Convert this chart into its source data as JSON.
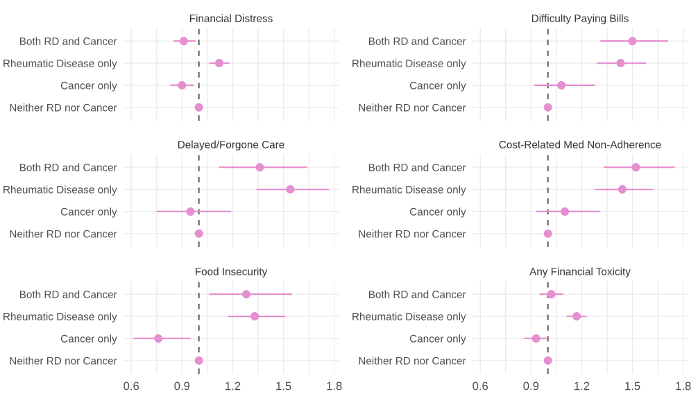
{
  "chart_data": [
    {
      "type": "scatter",
      "orientation": "horizontal",
      "title": "Financial Distress",
      "categories": [
        "Both RD and Cancer",
        "Rheumatic Disease only",
        "Cancer only",
        "Neither RD nor Cancer"
      ],
      "values": [
        0.91,
        1.12,
        0.9,
        1.0
      ],
      "errors": [
        [
          0.85,
          0.98
        ],
        [
          1.06,
          1.18
        ],
        [
          0.83,
          0.97
        ],
        null
      ],
      "color": "#e58fd0",
      "marker": "circle",
      "xlim": [
        0.55,
        1.83
      ],
      "xticks": [
        0.6,
        {
          "value": 0.75,
          "label": null
        },
        0.9,
        {
          "value": 1.05,
          "label": null
        },
        1.2,
        {
          "value": 1.35,
          "label": null
        },
        1.5,
        {
          "value": 1.65,
          "label": null
        },
        1.8
      ],
      "ref_lines": [
        {
          "axis": "x",
          "value": 1,
          "color": "#555555",
          "line_style": "dashed"
        }
      ],
      "grid": true,
      "tick_labels": "y"
    },
    {
      "type": "scatter",
      "orientation": "horizontal",
      "title": "Difficulty Paying Bills",
      "categories": [
        "Both RD and Cancer",
        "Rheumatic Disease only",
        "Cancer only",
        "Neither RD nor Cancer"
      ],
      "values": [
        1.5,
        1.43,
        1.08,
        1.0
      ],
      "errors": [
        [
          1.31,
          1.71
        ],
        [
          1.29,
          1.58
        ],
        [
          0.92,
          1.28
        ],
        null
      ],
      "color": "#e58fd0",
      "marker": "circle",
      "xlim": [
        0.55,
        1.83
      ],
      "xticks": [
        0.6,
        {
          "value": 0.75,
          "label": null
        },
        0.9,
        {
          "value": 1.05,
          "label": null
        },
        1.2,
        {
          "value": 1.35,
          "label": null
        },
        1.5,
        {
          "value": 1.65,
          "label": null
        },
        1.8
      ],
      "ref_lines": [
        {
          "axis": "x",
          "value": 1,
          "color": "#555555",
          "line_style": "dashed"
        }
      ],
      "grid": true,
      "tick_labels": "y"
    },
    {
      "type": "scatter",
      "orientation": "horizontal",
      "title": "Delayed/Forgone Care",
      "categories": [
        "Both RD and Cancer",
        "Rheumatic Disease only",
        "Cancer only",
        "Neither RD nor Cancer"
      ],
      "values": [
        1.36,
        1.54,
        0.95,
        1.0
      ],
      "errors": [
        [
          1.12,
          1.64
        ],
        [
          1.34,
          1.77
        ],
        [
          0.75,
          1.19
        ],
        null
      ],
      "color": "#e58fd0",
      "marker": "circle",
      "xlim": [
        0.55,
        1.83
      ],
      "xticks": [
        0.6,
        {
          "value": 0.75,
          "label": null
        },
        0.9,
        {
          "value": 1.05,
          "label": null
        },
        1.2,
        {
          "value": 1.35,
          "label": null
        },
        1.5,
        {
          "value": 1.65,
          "label": null
        },
        1.8
      ],
      "ref_lines": [
        {
          "axis": "x",
          "value": 1,
          "color": "#555555",
          "line_style": "dashed"
        }
      ],
      "grid": true,
      "tick_labels": "y"
    },
    {
      "type": "scatter",
      "orientation": "horizontal",
      "title": "Cost-Related Med Non-Adherence",
      "categories": [
        "Both RD and Cancer",
        "Rheumatic Disease only",
        "Cancer only",
        "Neither RD nor Cancer"
      ],
      "values": [
        1.52,
        1.44,
        1.1,
        1.0
      ],
      "errors": [
        [
          1.33,
          1.75
        ],
        [
          1.28,
          1.62
        ],
        [
          0.93,
          1.31
        ],
        null
      ],
      "color": "#e58fd0",
      "marker": "circle",
      "xlim": [
        0.55,
        1.83
      ],
      "xticks": [
        0.6,
        {
          "value": 0.75,
          "label": null
        },
        0.9,
        {
          "value": 1.05,
          "label": null
        },
        1.2,
        {
          "value": 1.35,
          "label": null
        },
        1.5,
        {
          "value": 1.65,
          "label": null
        },
        1.8
      ],
      "ref_lines": [
        {
          "axis": "x",
          "value": 1,
          "color": "#555555",
          "line_style": "dashed"
        }
      ],
      "grid": true,
      "tick_labels": "y"
    },
    {
      "type": "scatter",
      "orientation": "horizontal",
      "title": "Food Insecurity",
      "categories": [
        "Both RD and Cancer",
        "Rheumatic Disease only",
        "Cancer only",
        "Neither RD nor Cancer"
      ],
      "values": [
        1.28,
        1.33,
        0.76,
        1.0
      ],
      "errors": [
        [
          1.06,
          1.55
        ],
        [
          1.17,
          1.51
        ],
        [
          0.61,
          0.95
        ],
        null
      ],
      "color": "#e58fd0",
      "marker": "circle",
      "xlim": [
        0.55,
        1.83
      ],
      "xticks": [
        0.6,
        {
          "value": 0.75,
          "label": null
        },
        0.9,
        {
          "value": 1.05,
          "label": null
        },
        1.2,
        {
          "value": 1.35,
          "label": null
        },
        1.5,
        {
          "value": 1.65,
          "label": null
        },
        1.8
      ],
      "ref_lines": [
        {
          "axis": "x",
          "value": 1,
          "color": "#555555",
          "line_style": "dashed"
        }
      ],
      "grid": true
    },
    {
      "type": "scatter",
      "orientation": "horizontal",
      "title": "Any Financial Toxicity",
      "categories": [
        "Both RD and Cancer",
        "Rheumatic Disease only",
        "Cancer only",
        "Neither RD nor Cancer"
      ],
      "values": [
        1.02,
        1.17,
        0.93,
        1.0
      ],
      "errors": [
        [
          0.95,
          1.09
        ],
        [
          1.11,
          1.23
        ],
        [
          0.86,
          1.0
        ],
        null
      ],
      "color": "#e58fd0",
      "marker": "circle",
      "xlim": [
        0.55,
        1.83
      ],
      "xticks": [
        0.6,
        {
          "value": 0.75,
          "label": null
        },
        0.9,
        {
          "value": 1.05,
          "label": null
        },
        1.2,
        {
          "value": 1.35,
          "label": null
        },
        1.5,
        {
          "value": 1.65,
          "label": null
        },
        1.8
      ],
      "ref_lines": [
        {
          "axis": "x",
          "value": 1,
          "color": "#555555",
          "line_style": "dashed"
        }
      ],
      "grid": true
    }
  ]
}
